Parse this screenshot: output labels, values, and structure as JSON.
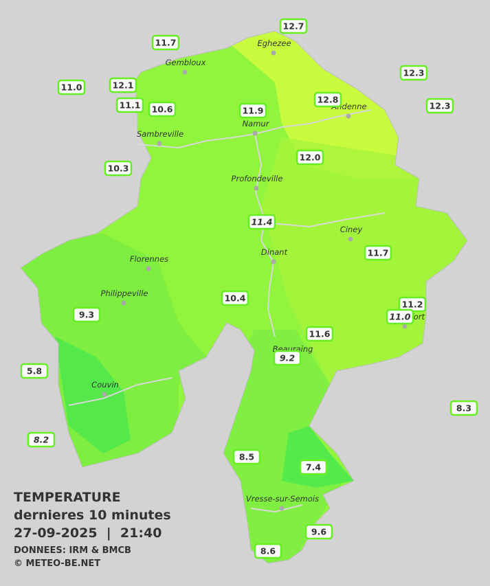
{
  "title": "TEMPERATURE",
  "subtitle": "dernieres 10 minutes",
  "datetime": "27-09-2025  |  21:40",
  "source": "DONNEES: IRM & BMCB",
  "copyright": "© METEO-BE.NET",
  "towns": [
    "Eghezee",
    "Gembloux",
    "Andenne",
    "Namur",
    "Sambreville",
    "Profondeville",
    "Ciney",
    "Dinant",
    "Florennes",
    "Philippeville",
    "Rochefort",
    "Beauraing",
    "Couvin",
    "Vresse-sur-Semois"
  ],
  "stations": [
    {
      "value": "12.7"
    },
    {
      "value": "11.7"
    },
    {
      "value": "12.3"
    },
    {
      "value": "11.0"
    },
    {
      "value": "12.1"
    },
    {
      "value": "11.1"
    },
    {
      "value": "10.6"
    },
    {
      "value": "11.9"
    },
    {
      "value": "12.8"
    },
    {
      "value": "12.3"
    },
    {
      "value": "10.3"
    },
    {
      "value": "12.0"
    },
    {
      "value": "11.4",
      "italic": true
    },
    {
      "value": "11.7"
    },
    {
      "value": "10.4"
    },
    {
      "value": "9.3"
    },
    {
      "value": "11.2"
    },
    {
      "value": "11.0",
      "italic": true
    },
    {
      "value": "11.6"
    },
    {
      "value": "9.2",
      "italic": true
    },
    {
      "value": "5.8"
    },
    {
      "value": "8.3"
    },
    {
      "value": "8.2",
      "italic": true
    },
    {
      "value": "8.5"
    },
    {
      "value": "7.4"
    },
    {
      "value": "9.6"
    },
    {
      "value": "8.6"
    }
  ]
}
